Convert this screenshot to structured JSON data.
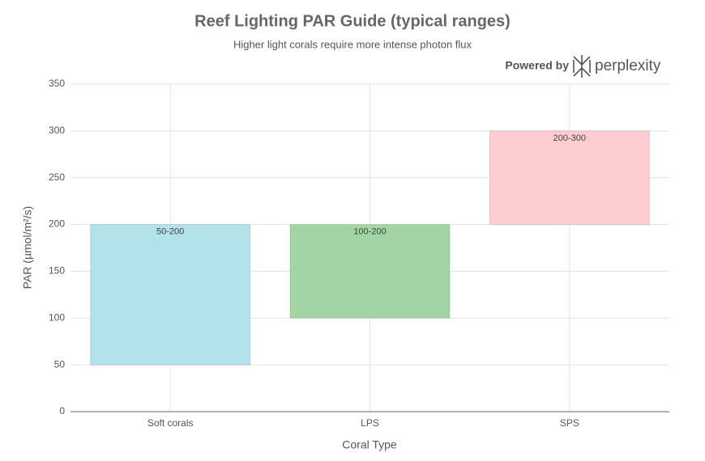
{
  "chart_data": {
    "type": "range-bar",
    "title": "Reef Lighting PAR Guide (typical ranges)",
    "subtitle": "Higher light corals require more intense photon flux",
    "branding": "Powered by",
    "brand_name": "perplexity",
    "x_label": "Coral Type",
    "y_label": "PAR (µmol/m²/s)",
    "categories": [
      "Soft corals",
      "LPS",
      "SPS"
    ],
    "lows": [
      50,
      100,
      200
    ],
    "highs": [
      200,
      200,
      300
    ],
    "value_labels": [
      "50-200",
      "100-200",
      "200-300"
    ],
    "colors": [
      "#b2e3ea",
      "#a3d4a5",
      "#fecdd2"
    ],
    "ylim": [
      0,
      350
    ],
    "yticks": [
      0,
      50,
      100,
      150,
      200,
      250,
      300,
      350
    ],
    "grid": true
  }
}
